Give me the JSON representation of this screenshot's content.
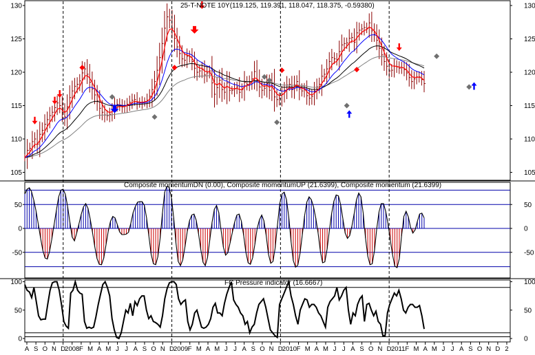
{
  "colors": {
    "price_bar": "#8b0000",
    "ma_red": "#ff0000",
    "ma_blue": "#0000ff",
    "ma_black": "#000000",
    "ma_gray": "#808080",
    "hist_up": "#0000aa",
    "hist_down": "#cc0000",
    "guide_line": "#0000aa",
    "signal_red": "#ff0000",
    "signal_blue": "#0000ff",
    "signal_gray": "#707070"
  },
  "chart_data": [
    {
      "type": "line",
      "panel": "price",
      "title": "25-T-NOTE 10Y(119.125, 119.391, 118.047, 118.375, -0.59380)",
      "ylim": [
        104,
        131
      ],
      "yticks": [
        "130",
        "125",
        "120",
        "115",
        "110",
        "105"
      ],
      "closes": [
        107.2,
        108.3,
        108.6,
        109.6,
        110.0,
        109.2,
        110.7,
        111.3,
        112.2,
        112.9,
        113.5,
        114.0,
        114.7,
        115.4,
        115.0,
        114.0,
        113.3,
        114.8,
        116.2,
        117.2,
        117.9,
        118.2,
        118.7,
        119.9,
        120.5,
        119.7,
        118.5,
        117.5,
        116.6,
        115.7,
        114.6,
        114.0,
        113.6,
        113.5,
        113.7,
        114.3,
        114.9,
        115.2,
        115.1,
        114.8,
        114.9,
        115.2,
        115.5,
        115.8,
        115.9,
        115.5,
        115.4,
        115.5,
        115.6,
        115.8,
        116.4,
        117.4,
        118.6,
        120.3,
        122.2,
        124.3,
        126.6,
        128.3,
        127.8,
        126.6,
        125.1,
        123.8,
        122.8,
        122.0,
        121.8,
        122.4,
        122.3,
        121.6,
        120.6,
        120.0,
        120.2,
        120.5,
        119.6,
        119.9,
        120.2,
        118.4,
        116.7,
        117.7,
        118.8,
        117.4,
        117.0,
        118.4,
        117.3,
        117.3,
        117.5,
        117.8,
        117.0,
        117.4,
        118.5,
        118.2,
        118.5,
        119.0,
        120.1,
        118.9,
        117.8,
        117.3,
        117.6,
        118.3,
        117.3,
        118.3,
        116.3,
        115.9,
        116.1,
        116.7,
        117.3,
        118.1,
        118.2,
        117.4,
        118.1,
        118.6,
        117.5,
        117.2,
        117.4,
        116.5,
        116.1,
        116.4,
        117.2,
        117.8,
        118.2,
        119.4,
        119.7,
        120.5,
        121.6,
        122.2,
        122.0,
        121.9,
        123.1,
        124.1,
        124.3,
        124.4,
        125.1,
        125.2,
        124.5,
        125.9,
        126.3,
        126.5,
        126.7,
        126.6,
        127.4,
        126.2,
        125.7,
        124.8,
        123.6,
        122.6,
        121.6,
        120.9,
        120.2,
        120.3,
        120.9,
        120.8,
        120.6,
        120.7,
        120.4,
        119.9,
        119.2,
        118.6,
        119.0,
        119.3,
        119.3,
        118.9,
        118.3
      ],
      "series": [
        {
          "name": "",
          "role": "close",
          "color": "#8b0000"
        },
        {
          "name": "",
          "role": "ma_fast",
          "color": "#ff0000"
        },
        {
          "name": "",
          "role": "ma_mid",
          "color": "#0000ff"
        },
        {
          "name": "",
          "role": "ma_slow",
          "color": "#000000"
        },
        {
          "name": "",
          "role": "ma_longest",
          "color": "#808080"
        }
      ],
      "signals": [
        {
          "shape": "arrow-down",
          "color": "red",
          "bar_index": 4,
          "price": 112.5
        },
        {
          "shape": "arrow-down",
          "color": "red",
          "bar_index": 12,
          "price": 115.5
        },
        {
          "shape": "arrow-down",
          "color": "red",
          "bar_index": 14,
          "price": 116.5
        },
        {
          "shape": "diamond",
          "color": "red",
          "bar_index": 23,
          "price": 120.7
        },
        {
          "shape": "diamond",
          "color": "gray",
          "bar_index": 35,
          "price": 116.3
        },
        {
          "shape": "arrow-down-bold",
          "color": "blue",
          "bar_index": 36,
          "price": 114.3
        },
        {
          "shape": "diamond",
          "color": "gray",
          "bar_index": 52,
          "price": 113.3
        },
        {
          "shape": "diamond",
          "color": "red",
          "bar_index": 60,
          "price": 120.7
        },
        {
          "shape": "arrow-down-bold",
          "color": "red",
          "bar_index": 68,
          "price": 126.2
        },
        {
          "shape": "arrow-down",
          "color": "red",
          "bar_index": 71,
          "price": 129.8
        },
        {
          "shape": "diamond",
          "color": "gray",
          "bar_index": 96,
          "price": 119.3
        },
        {
          "shape": "diamond",
          "color": "gray",
          "bar_index": 98,
          "price": 118.8
        },
        {
          "shape": "diamond",
          "color": "gray",
          "bar_index": 101,
          "price": 112.5
        },
        {
          "shape": "diamond",
          "color": "red",
          "bar_index": 103,
          "price": 120.3
        },
        {
          "shape": "diamond",
          "color": "gray",
          "bar_index": 129,
          "price": 115.0
        },
        {
          "shape": "arrow-up",
          "color": "blue",
          "bar_index": 130,
          "price": 114.0
        },
        {
          "shape": "diamond",
          "color": "red",
          "bar_index": 133,
          "price": 120.4
        },
        {
          "shape": "arrow-down",
          "color": "red",
          "bar_index": 150,
          "price": 123.5
        },
        {
          "shape": "diamond",
          "color": "gray",
          "bar_index": 165,
          "price": 122.4
        },
        {
          "shape": "diamond",
          "color": "gray",
          "bar_index": 178,
          "price": 117.8
        },
        {
          "shape": "arrow-up",
          "color": "blue",
          "bar_index": 180,
          "price": 118.2
        }
      ]
    },
    {
      "type": "bar",
      "panel": "momentum",
      "title": "Composite momentumDN (0.00), Composite momentumUP (21.6399), Composite momentum (21.6399)",
      "ylim": [
        -100,
        100
      ],
      "yticks": [
        "50",
        "0",
        "-50"
      ],
      "guide_levels": [
        80,
        50,
        0,
        -50,
        -80
      ],
      "series": [
        {
          "name": "Composite momentum",
          "values": [
            72,
            82,
            85,
            77,
            59,
            36,
            8,
            -20,
            -46,
            -62,
            -64,
            -48,
            -22,
            8,
            38,
            66,
            80,
            82,
            71,
            45,
            13,
            -18,
            -26,
            -10,
            9,
            29,
            45,
            52,
            42,
            20,
            -8,
            -38,
            -63,
            -75,
            -76,
            -62,
            -34,
            -6,
            15,
            25,
            22,
            8,
            -7,
            -13,
            -13,
            -12,
            -8,
            11,
            33,
            46,
            55,
            56,
            56,
            48,
            22,
            -16,
            -54,
            -74,
            -76,
            -59,
            -20,
            32,
            76,
            88,
            86,
            64,
            22,
            -30,
            -69,
            -78,
            -66,
            -38,
            -7,
            16,
            28,
            30,
            17,
            -11,
            -44,
            -71,
            -78,
            -61,
            -24,
            13,
            40,
            48,
            33,
            -4,
            -39,
            -56,
            -51,
            -30,
            -8,
            13,
            28,
            30,
            15,
            -15,
            -50,
            -72,
            -75,
            -61,
            -33,
            0,
            18,
            28,
            16,
            -15,
            -54,
            -73,
            -69,
            -40,
            8,
            52,
            72,
            76,
            60,
            24,
            -27,
            -67,
            -81,
            -77,
            -52,
            -13,
            26,
            55,
            66,
            60,
            45,
            21,
            -10,
            -48,
            -72,
            -70,
            -43,
            -4,
            31,
            57,
            70,
            68,
            49,
            20,
            -10,
            -21,
            -15,
            5,
            31,
            60,
            74,
            66,
            32,
            -20,
            -58,
            -76,
            -74,
            -46,
            0,
            35,
            52,
            52,
            35,
            9,
            -24,
            -55,
            -79,
            -82,
            -63,
            -16,
            25,
            36,
            24,
            2,
            -10,
            -3,
            15,
            30,
            32,
            22
          ]
        }
      ]
    },
    {
      "type": "line",
      "panel": "pressure",
      "title": "FC Pressure indicator (16.6667)",
      "ylim": [
        0,
        105
      ],
      "yticks": [
        "100",
        "50",
        "0"
      ],
      "guide_levels": [
        90,
        10,
        3
      ],
      "series": [
        {
          "name": "FC Pressure indicator",
          "values": [
            95,
            85,
            82,
            72,
            90,
            65,
            40,
            33,
            34,
            34,
            60,
            85,
            98,
            100,
            100,
            85,
            60,
            30,
            22,
            18,
            80,
            85,
            100,
            85,
            80,
            78,
            30,
            18,
            20,
            18,
            20,
            38,
            60,
            78,
            95,
            100,
            90,
            75,
            35,
            15,
            2,
            0,
            10,
            30,
            50,
            45,
            62,
            40,
            65,
            58,
            70,
            75,
            75,
            50,
            35,
            40,
            30,
            28,
            25,
            20,
            40,
            70,
            88,
            98,
            100,
            100,
            95,
            70,
            60,
            65,
            68,
            30,
            15,
            25,
            45,
            50,
            35,
            20,
            18,
            20,
            25,
            35,
            55,
            62,
            45,
            45,
            40,
            62,
            78,
            90,
            100,
            68,
            60,
            55,
            45,
            40,
            25,
            30,
            10,
            20,
            25,
            45,
            60,
            65,
            70,
            55,
            35,
            15,
            10,
            5,
            2,
            60,
            70,
            80,
            90,
            100,
            75,
            60,
            40,
            25,
            50,
            60,
            70,
            68,
            55,
            60,
            60,
            55,
            45,
            40,
            30,
            20,
            55,
            65,
            70,
            75,
            90,
            68,
            75,
            85,
            90,
            50,
            25,
            45,
            40,
            60,
            70,
            75,
            30,
            60,
            62,
            50,
            40,
            48,
            30,
            25,
            5,
            5,
            45,
            60,
            70,
            80,
            75,
            85,
            70,
            50,
            45,
            55,
            60,
            60,
            55,
            55,
            58,
            40,
            16.67
          ]
        }
      ]
    },
    {
      "type": "axis",
      "panel": "time",
      "tick_labels": [
        "A",
        "S",
        "O",
        "N",
        "D",
        "2008",
        "F",
        "M",
        "A",
        "M",
        "J",
        "J",
        "A",
        "S",
        "O",
        "N",
        "D",
        "2009",
        "F",
        "M",
        "A",
        "M",
        "J",
        "J",
        "A",
        "S",
        "O",
        "N",
        "D",
        "2010",
        "F",
        "M",
        "A",
        "M",
        "J",
        "J",
        "A",
        "S",
        "O",
        "N",
        "D",
        "2011",
        "F",
        "M",
        "A",
        "M",
        "J",
        "J",
        "A",
        "S",
        "O",
        "N",
        "D",
        "2"
      ],
      "year_markers": [
        "2008",
        "2009",
        "2010",
        "2011"
      ]
    }
  ]
}
